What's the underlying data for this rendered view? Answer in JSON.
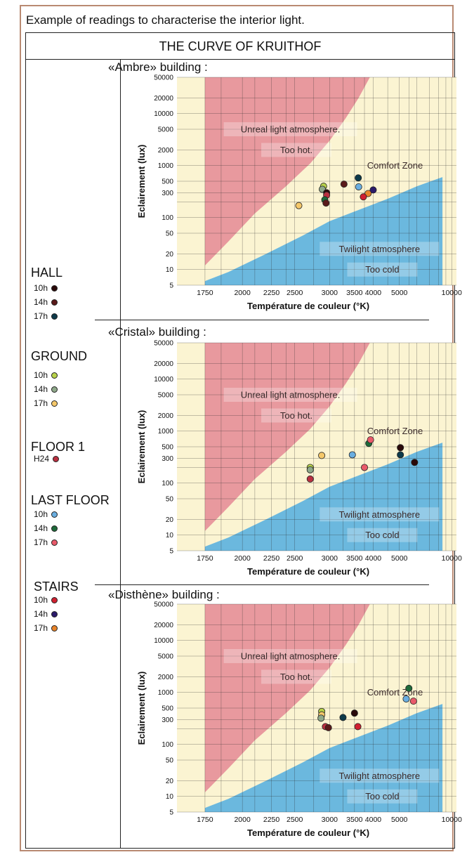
{
  "caption": "Example of readings to characterise the interior light.",
  "table_title": "THE CURVE OF KRUITHOF",
  "legend": [
    {
      "group": "HALL",
      "items": [
        {
          "label": "10h",
          "color": "#2a0a0a"
        },
        {
          "label": "14h",
          "color": "#5a1a1a"
        },
        {
          "label": "17h",
          "color": "#0d3a4a"
        }
      ]
    },
    {
      "group": "GROUND",
      "items": [
        {
          "label": "10h",
          "color": "#b8d24a"
        },
        {
          "label": "14h",
          "color": "#8fa98a"
        },
        {
          "label": "17h",
          "color": "#f5c86a"
        }
      ]
    },
    {
      "group": "FLOOR 1",
      "items": [
        {
          "label": "H24",
          "color": "#b83040"
        }
      ]
    },
    {
      "group": "LAST FLOOR",
      "items": [
        {
          "label": "10h",
          "color": "#6aaee0"
        },
        {
          "label": "14h",
          "color": "#1e6a3a"
        },
        {
          "label": "17h",
          "color": "#e85a6a"
        }
      ]
    },
    {
      "group": "STAIRS",
      "items": [
        {
          "label": "10h",
          "color": "#d02030"
        },
        {
          "label": "14h",
          "color": "#2a1a6a"
        },
        {
          "label": "17h",
          "color": "#e8842a"
        }
      ]
    }
  ],
  "chart_data": [
    {
      "type": "scatter",
      "title": "«Ambre» building :",
      "xlabel": "Température de couleur (°K)",
      "ylabel": "Eclairement (lux)",
      "x_ticks": [
        "1750",
        "2000",
        "2250",
        "2500",
        "3000",
        "3500",
        "4000",
        "5000",
        "10000"
      ],
      "y_ticks": [
        "50000",
        "20000",
        "10000",
        "5000",
        "2000",
        "1000",
        "500",
        "300",
        "100",
        "50",
        "20",
        "10",
        "5"
      ],
      "x_scale": "reciprocal",
      "y_scale": "log",
      "regions": [
        "Unreal light atmosphere.",
        "Too hot.",
        "Comfort Zone",
        "Twilight atmosphere",
        "Too cold"
      ],
      "points": [
        {
          "x": 2900,
          "y": 400,
          "color": "#b8d24a"
        },
        {
          "x": 2880,
          "y": 350,
          "color": "#8fa98a"
        },
        {
          "x": 2950,
          "y": 300,
          "color": "#2a0a0a"
        },
        {
          "x": 2950,
          "y": 270,
          "color": "#b83040"
        },
        {
          "x": 2920,
          "y": 220,
          "color": "#1e6a3a"
        },
        {
          "x": 2940,
          "y": 190,
          "color": "#5a1a1a"
        },
        {
          "x": 2550,
          "y": 170,
          "color": "#f5c86a"
        },
        {
          "x": 3270,
          "y": 440,
          "color": "#5a1a1a"
        },
        {
          "x": 3590,
          "y": 580,
          "color": "#0d3a4a"
        },
        {
          "x": 3600,
          "y": 390,
          "color": "#6aaee0"
        },
        {
          "x": 4000,
          "y": 340,
          "color": "#2a1a6a"
        },
        {
          "x": 3850,
          "y": 290,
          "color": "#e8842a"
        },
        {
          "x": 3720,
          "y": 250,
          "color": "#d02030"
        }
      ]
    },
    {
      "type": "scatter",
      "title": "«Cristal» building :",
      "xlabel": "Température de couleur (°K)",
      "ylabel": "Eclairement (lux)",
      "x_ticks": [
        "1750",
        "2000",
        "2250",
        "2500",
        "3000",
        "3500",
        "4000",
        "5000",
        "10000"
      ],
      "y_ticks": [
        "50000",
        "20000",
        "10000",
        "5000",
        "2000",
        "1000",
        "500",
        "300",
        "100",
        "50",
        "20",
        "10",
        "5"
      ],
      "x_scale": "reciprocal",
      "y_scale": "log",
      "regions": [
        "Unreal light atmosphere.",
        "Too hot.",
        "Comfort Zone",
        "Twilight atmosphere",
        "Too cold"
      ],
      "points": [
        {
          "x": 2870,
          "y": 340,
          "color": "#f5c86a"
        },
        {
          "x": 2700,
          "y": 200,
          "color": "#b8d24a"
        },
        {
          "x": 2700,
          "y": 180,
          "color": "#8fa98a"
        },
        {
          "x": 2700,
          "y": 120,
          "color": "#b83040"
        },
        {
          "x": 3450,
          "y": 350,
          "color": "#6aaee0"
        },
        {
          "x": 3750,
          "y": 200,
          "color": "#e85a6a"
        },
        {
          "x": 3870,
          "y": 580,
          "color": "#1e6a3a"
        },
        {
          "x": 3920,
          "y": 680,
          "color": "#e85a6a"
        },
        {
          "x": 5050,
          "y": 480,
          "color": "#2a0a0a"
        },
        {
          "x": 5050,
          "y": 350,
          "color": "#0d3a4a"
        },
        {
          "x": 5850,
          "y": 250,
          "color": "#2a0a0a"
        }
      ]
    },
    {
      "type": "scatter",
      "title": "«Disthène» building :",
      "xlabel": "Température de couleur (°K)",
      "ylabel": "Eclairement (lux)",
      "x_ticks": [
        "1750",
        "2000",
        "2250",
        "2500",
        "3000",
        "3500",
        "4000",
        "5000",
        "10000"
      ],
      "y_ticks": [
        "50000",
        "20000",
        "10000",
        "5000",
        "2000",
        "1000",
        "500",
        "300",
        "100",
        "50",
        "20",
        "10",
        "5"
      ],
      "x_scale": "reciprocal",
      "y_scale": "log",
      "regions": [
        "Unreal light atmosphere.",
        "Too hot.",
        "Comfort Zone",
        "Twilight atmosphere",
        "Too cold"
      ],
      "points": [
        {
          "x": 2870,
          "y": 430,
          "color": "#b8d24a"
        },
        {
          "x": 2870,
          "y": 370,
          "color": "#f5c86a"
        },
        {
          "x": 2860,
          "y": 320,
          "color": "#8fa98a"
        },
        {
          "x": 2930,
          "y": 220,
          "color": "#b83040"
        },
        {
          "x": 2980,
          "y": 210,
          "color": "#5a1a1a"
        },
        {
          "x": 3250,
          "y": 330,
          "color": "#0d3a4a"
        },
        {
          "x": 3500,
          "y": 400,
          "color": "#2a0a0a"
        },
        {
          "x": 3580,
          "y": 220,
          "color": "#d02030"
        },
        {
          "x": 5350,
          "y": 750,
          "color": "#6aaee0"
        },
        {
          "x": 5500,
          "y": 1200,
          "color": "#1e6a3a"
        },
        {
          "x": 5780,
          "y": 680,
          "color": "#e85a6a"
        }
      ]
    }
  ]
}
